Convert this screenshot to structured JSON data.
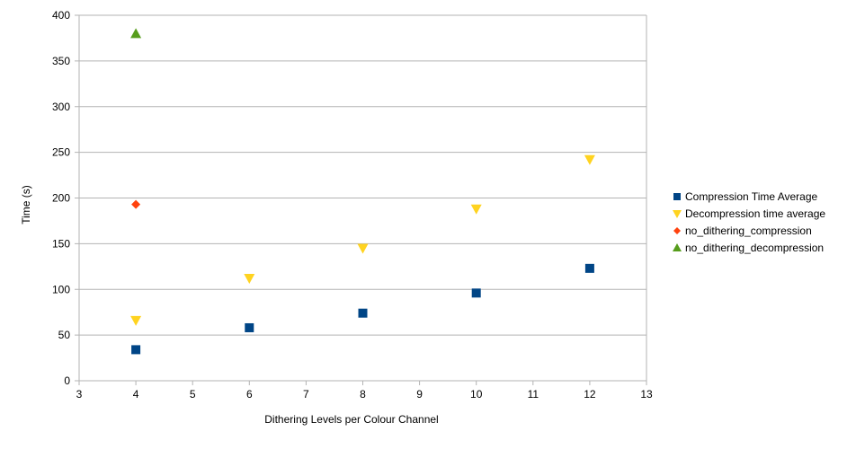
{
  "chart_data": {
    "type": "scatter",
    "title": "",
    "xlabel": "Dithering Levels per Colour Channel",
    "ylabel": "Time (s)",
    "xlim": [
      3,
      13
    ],
    "ylim": [
      0,
      400
    ],
    "x_ticks": [
      "3",
      "4",
      "5",
      "6",
      "7",
      "8",
      "9",
      "10",
      "11",
      "12",
      "13"
    ],
    "y_ticks": [
      "0",
      "50",
      "100",
      "150",
      "200",
      "250",
      "300",
      "350",
      "400"
    ],
    "grid": true,
    "legend_position": "right",
    "series": [
      {
        "name": "Compression Time Average",
        "marker": "square",
        "color": "#004586",
        "points": [
          [
            4,
            34
          ],
          [
            6,
            58
          ],
          [
            8,
            74
          ],
          [
            10,
            96
          ],
          [
            12,
            123
          ]
        ]
      },
      {
        "name": "Decompression time average",
        "marker": "triangle-down",
        "color": "#ffd320",
        "points": [
          [
            4,
            66
          ],
          [
            6,
            112
          ],
          [
            8,
            145
          ],
          [
            10,
            188
          ],
          [
            12,
            242
          ]
        ]
      },
      {
        "name": "no_dithering_compression",
        "marker": "diamond",
        "color": "#ff420e",
        "points": [
          [
            4,
            193
          ]
        ]
      },
      {
        "name": "no_dithering_decompression",
        "marker": "triangle-up",
        "color": "#579d1c",
        "points": [
          [
            4,
            380
          ]
        ]
      }
    ]
  }
}
